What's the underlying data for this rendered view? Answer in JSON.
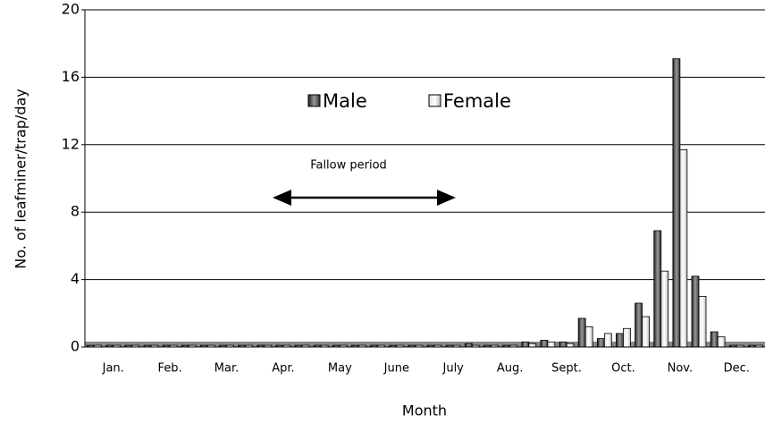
{
  "chart_data": {
    "type": "bar",
    "y_label": "No. of leafminer/trap/day",
    "x_label": "Month",
    "annotation": "Fallow period",
    "categories": [
      null,
      "Jan.",
      null,
      null,
      "Feb.",
      null,
      null,
      "Mar.",
      null,
      null,
      "Apr.",
      null,
      null,
      "May",
      null,
      null,
      "June",
      null,
      null,
      "July",
      null,
      null,
      "Aug.",
      null,
      null,
      "Sept.",
      null,
      null,
      "Oct.",
      null,
      null,
      "Nov.",
      null,
      null,
      "Dec.",
      null
    ],
    "series": [
      {
        "name": "Male",
        "color": "#444444",
        "values": [
          0.1,
          0.1,
          0.1,
          0.1,
          0.1,
          0.1,
          0.1,
          0.1,
          0.1,
          0.1,
          0.1,
          0.1,
          0.1,
          0.1,
          0.1,
          0.1,
          0.1,
          0.1,
          0.1,
          0.1,
          0.2,
          0.1,
          0.1,
          0.3,
          0.4,
          0.3,
          1.7,
          0.5,
          0.8,
          2.6,
          6.9,
          17.1,
          4.2,
          0.9,
          0.1,
          0.1
        ]
      },
      {
        "name": "Female",
        "color": "#ffffff",
        "values": [
          0.1,
          0.1,
          0.1,
          0.1,
          0.1,
          0.1,
          0.1,
          0.1,
          0.1,
          0.1,
          0.1,
          0.1,
          0.1,
          0.1,
          0.1,
          0.1,
          0.1,
          0.1,
          0.1,
          0.1,
          0.1,
          0.1,
          0.1,
          0.2,
          0.3,
          0.2,
          1.2,
          0.8,
          1.1,
          1.8,
          4.5,
          11.7,
          3.0,
          0.6,
          0.1,
          0.1
        ]
      }
    ],
    "ylim": [
      0,
      20
    ],
    "yticks": [
      0,
      4,
      8,
      12,
      16,
      20
    ],
    "grid": true
  }
}
